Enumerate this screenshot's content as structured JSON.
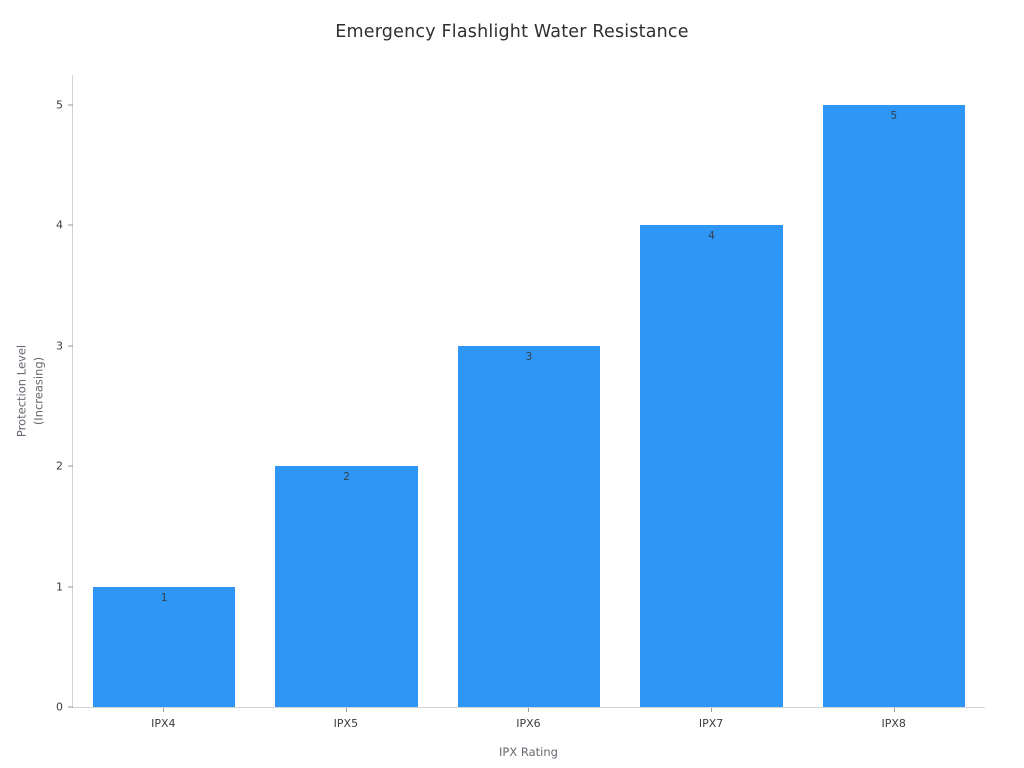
{
  "chart_data": {
    "type": "bar",
    "title": "Emergency Flashlight Water Resistance",
    "xlabel": "IPX Rating",
    "ylabel": "Protection Level (Increasing)",
    "ylabel_lines": [
      "Protection Level",
      "(Increasing)"
    ],
    "categories": [
      "IPX4",
      "IPX5",
      "IPX6",
      "IPX7",
      "IPX8"
    ],
    "values": [
      1,
      2,
      3,
      4,
      5
    ],
    "bar_labels": [
      "1",
      "2",
      "3",
      "4",
      "5"
    ],
    "yticks": [
      0,
      1,
      2,
      3,
      4,
      5
    ],
    "ylim": [
      0,
      5.25
    ],
    "grid": false,
    "legend_position": "none",
    "bar_color": "#2e96f5",
    "axis_line_color": "#d4d4d4",
    "tick_label_color": "#3d3d3d",
    "bar_value_label_color": "#36414b"
  }
}
